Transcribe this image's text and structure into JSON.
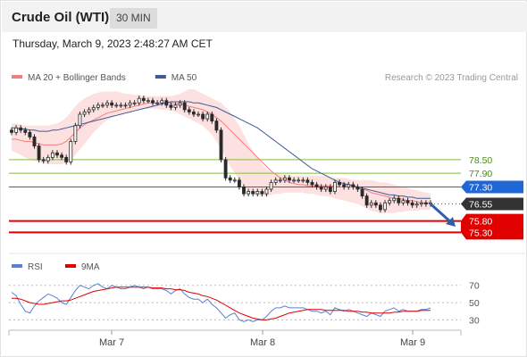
{
  "header": {
    "instrument": "Crude Oil (WTI)",
    "interval": "30 MIN"
  },
  "datetime": "Thursday, March 9, 2023 2:48:27 AM CET",
  "copyright": "Research © 2023 Trading Central",
  "colors": {
    "ma20": "#f08080",
    "ma50": "#3d5a99",
    "band_fill": "#fde0e0",
    "resistance": "#7fbf3f",
    "pivot": "#1f66d6",
    "support": "#e00000",
    "last_price": "#333333",
    "candle": "#2a2a2a",
    "rsi": "#5b7fd6",
    "rsi_ma": "#e00000"
  },
  "chart_data": [
    {
      "type": "candlestick",
      "title": "",
      "legend": [
        {
          "name": "MA 20 + Bollinger Bands",
          "color": "#f08080"
        },
        {
          "name": "MA 50",
          "color": "#3d5a99"
        }
      ],
      "legend_position": "top-left",
      "x_ticks": [
        "Mar 7",
        "Mar 8",
        "Mar 9"
      ],
      "ylim": [
        75.0,
        81.6
      ],
      "y_ticks": [],
      "levels": [
        {
          "label": "78.50",
          "value": 78.5,
          "kind": "resistance"
        },
        {
          "label": "77.90",
          "value": 77.9,
          "kind": "resistance"
        },
        {
          "label": "77.30",
          "value": 77.3,
          "kind": "pivot"
        },
        {
          "label": "76.55",
          "value": 76.55,
          "kind": "last"
        },
        {
          "label": "75.80",
          "value": 75.8,
          "kind": "support"
        },
        {
          "label": "75.30",
          "value": 75.3,
          "kind": "support"
        }
      ],
      "close": [
        79.7,
        79.9,
        79.8,
        79.7,
        79.5,
        79.1,
        78.5,
        78.45,
        78.6,
        78.8,
        78.7,
        78.6,
        78.4,
        79.3,
        80.0,
        80.5,
        80.6,
        80.7,
        80.8,
        80.9,
        80.9,
        81.0,
        80.9,
        80.9,
        80.9,
        80.9,
        81.0,
        81.0,
        81.2,
        81.1,
        81.1,
        81.0,
        81.0,
        81.1,
        80.9,
        80.8,
        80.9,
        81.0,
        80.7,
        80.6,
        80.5,
        80.5,
        80.3,
        80.5,
        80.2,
        79.8,
        78.5,
        77.7,
        77.6,
        77.6,
        77.3,
        77.0,
        77.1,
        77.0,
        77.1,
        77.0,
        77.2,
        77.5,
        77.6,
        77.6,
        77.7,
        77.6,
        77.6,
        77.6,
        77.6,
        77.5,
        77.4,
        77.3,
        77.2,
        77.3,
        77.1,
        77.5,
        77.4,
        77.3,
        77.4,
        77.3,
        77.2,
        76.9,
        76.5,
        76.6,
        76.5,
        76.3,
        76.6,
        76.7,
        76.8,
        76.6,
        76.7,
        76.6,
        76.5,
        76.55,
        76.6,
        76.55,
        76.6
      ],
      "ma20": [
        79.4,
        79.4,
        79.35,
        79.3,
        79.3,
        79.25,
        79.2,
        79.15,
        79.15,
        79.15,
        79.15,
        79.2,
        79.3,
        79.5,
        79.7,
        79.9,
        80.05,
        80.15,
        80.25,
        80.35,
        80.45,
        80.55,
        80.6,
        80.65,
        80.7,
        80.75,
        80.8,
        80.85,
        80.9,
        80.95,
        81.0,
        81.0,
        81.0,
        81.0,
        81.0,
        81.0,
        80.95,
        80.95,
        80.9,
        80.85,
        80.8,
        80.75,
        80.7,
        80.6,
        80.5,
        80.35,
        80.2,
        80.0,
        79.8,
        79.6,
        79.4,
        79.2,
        79.0,
        78.8,
        78.6,
        78.4,
        78.2,
        78.0,
        77.85,
        77.7,
        77.6,
        77.5,
        77.45,
        77.4,
        77.4,
        77.35,
        77.35,
        77.35,
        77.35,
        77.35,
        77.35,
        77.35,
        77.3,
        77.3,
        77.3,
        77.3,
        77.25,
        77.2,
        77.15,
        77.05,
        77.0,
        76.95,
        76.9,
        76.85,
        76.8,
        76.8,
        76.75,
        76.7,
        76.7,
        76.65,
        76.6,
        76.6,
        76.6
      ],
      "bb_upper": [
        80.1,
        80.1,
        80.05,
        80.0,
        80.0,
        80.0,
        80.0,
        80.0,
        80.0,
        80.05,
        80.1,
        80.2,
        80.35,
        80.6,
        80.85,
        81.05,
        81.2,
        81.3,
        81.4,
        81.45,
        81.5,
        81.5,
        81.5,
        81.5,
        81.45,
        81.4,
        81.4,
        81.35,
        81.35,
        81.3,
        81.3,
        81.3,
        81.3,
        81.3,
        81.3,
        81.3,
        81.35,
        81.4,
        81.5,
        81.6,
        81.6,
        81.5,
        81.4,
        81.3,
        81.2,
        81.1,
        81.0,
        80.8,
        80.6,
        80.3,
        80.0,
        79.6,
        79.2,
        78.9,
        78.6,
        78.3,
        78.1,
        77.95,
        77.9,
        77.85,
        77.85,
        77.8,
        77.8,
        77.8,
        77.8,
        77.8,
        77.8,
        77.8,
        77.8,
        77.8,
        77.75,
        77.7,
        77.7,
        77.7,
        77.65,
        77.6,
        77.6,
        77.6,
        77.6,
        77.6,
        77.55,
        77.5,
        77.5,
        77.45,
        77.4,
        77.35,
        77.3,
        77.25,
        77.2,
        77.15,
        77.1,
        77.05,
        77.0
      ],
      "bb_lower": [
        78.9,
        78.8,
        78.7,
        78.6,
        78.5,
        78.45,
        78.4,
        78.35,
        78.3,
        78.3,
        78.3,
        78.3,
        78.35,
        78.5,
        78.7,
        78.95,
        79.2,
        79.45,
        79.7,
        79.9,
        80.1,
        80.25,
        80.35,
        80.45,
        80.5,
        80.55,
        80.6,
        80.65,
        80.7,
        80.75,
        80.75,
        80.75,
        80.75,
        80.7,
        80.7,
        80.65,
        80.6,
        80.5,
        80.4,
        80.3,
        80.2,
        80.1,
        80.0,
        79.8,
        79.6,
        79.3,
        79.0,
        78.6,
        78.2,
        77.9,
        77.6,
        77.3,
        77.1,
        76.95,
        76.9,
        76.9,
        76.9,
        76.95,
        77.0,
        77.0,
        77.05,
        77.05,
        77.05,
        77.05,
        77.05,
        77.0,
        77.0,
        76.95,
        76.9,
        76.9,
        76.85,
        76.8,
        76.75,
        76.7,
        76.65,
        76.6,
        76.55,
        76.45,
        76.35,
        76.25,
        76.2,
        76.15,
        76.15,
        76.15,
        76.15,
        76.2,
        76.2,
        76.25,
        76.25,
        76.25,
        76.3,
        76.3,
        76.3
      ],
      "ma50": [
        79.9,
        79.9,
        79.85,
        79.85,
        79.8,
        79.8,
        79.75,
        79.75,
        79.75,
        79.8,
        79.8,
        79.85,
        79.9,
        79.95,
        80.0,
        80.05,
        80.1,
        80.15,
        80.2,
        80.25,
        80.3,
        80.35,
        80.4,
        80.45,
        80.5,
        80.55,
        80.6,
        80.65,
        80.7,
        80.75,
        80.8,
        80.85,
        80.9,
        80.95,
        81.0,
        81.05,
        81.05,
        81.05,
        81.05,
        81.05,
        81.0,
        81.0,
        80.95,
        80.9,
        80.85,
        80.8,
        80.7,
        80.6,
        80.5,
        80.4,
        80.3,
        80.2,
        80.1,
        80.0,
        79.9,
        79.75,
        79.6,
        79.45,
        79.3,
        79.15,
        79.0,
        78.85,
        78.7,
        78.55,
        78.4,
        78.25,
        78.1,
        78.0,
        77.9,
        77.8,
        77.7,
        77.6,
        77.5,
        77.45,
        77.4,
        77.35,
        77.3,
        77.25,
        77.2,
        77.15,
        77.1,
        77.05,
        77.0,
        76.95,
        76.95,
        76.9,
        76.9,
        76.85,
        76.85,
        76.8,
        76.8,
        76.8,
        76.8
      ],
      "projection": {
        "from": 76.55,
        "to": 75.55
      }
    },
    {
      "type": "line",
      "title": "",
      "legend": [
        {
          "name": "RSI",
          "color": "#5b7fd6"
        },
        {
          "name": "9MA",
          "color": "#e00000"
        }
      ],
      "legend_position": "top-left",
      "ylim": [
        18,
        78
      ],
      "y_ticks": [
        70,
        50,
        30
      ],
      "series": [
        {
          "name": "RSI",
          "values": [
            62,
            58,
            48,
            40,
            38,
            46,
            52,
            56,
            60,
            58,
            55,
            50,
            48,
            56,
            64,
            70,
            68,
            66,
            70,
            72,
            68,
            66,
            70,
            68,
            66,
            66,
            68,
            70,
            68,
            66,
            68,
            66,
            66,
            66,
            64,
            60,
            64,
            66,
            60,
            56,
            54,
            54,
            50,
            54,
            48,
            44,
            38,
            32,
            36,
            38,
            30,
            28,
            30,
            28,
            30,
            30,
            34,
            40,
            44,
            44,
            46,
            44,
            44,
            44,
            44,
            42,
            40,
            40,
            38,
            40,
            36,
            44,
            42,
            40,
            42,
            40,
            38,
            36,
            34,
            38,
            36,
            34,
            40,
            42,
            44,
            40,
            42,
            40,
            40,
            40,
            42,
            42,
            44
          ]
        },
        {
          "name": "9MA",
          "values": [
            55,
            55,
            54,
            52,
            50,
            49,
            48,
            48,
            49,
            50,
            51,
            52,
            52,
            53,
            55,
            57,
            59,
            61,
            63,
            64,
            65,
            66,
            67,
            68,
            68,
            68,
            68,
            68,
            68,
            68,
            68,
            67,
            67,
            67,
            66,
            66,
            65,
            65,
            64,
            62,
            61,
            60,
            58,
            57,
            55,
            53,
            50,
            47,
            44,
            41,
            38,
            36,
            34,
            32,
            31,
            30,
            30,
            31,
            32,
            34,
            36,
            38,
            39,
            40,
            41,
            42,
            42,
            42,
            42,
            41,
            41,
            41,
            41,
            41,
            40,
            40,
            40,
            39,
            39,
            38,
            38,
            38,
            38,
            38,
            39,
            39,
            40,
            40,
            40,
            40,
            41,
            41,
            41
          ]
        }
      ]
    }
  ]
}
